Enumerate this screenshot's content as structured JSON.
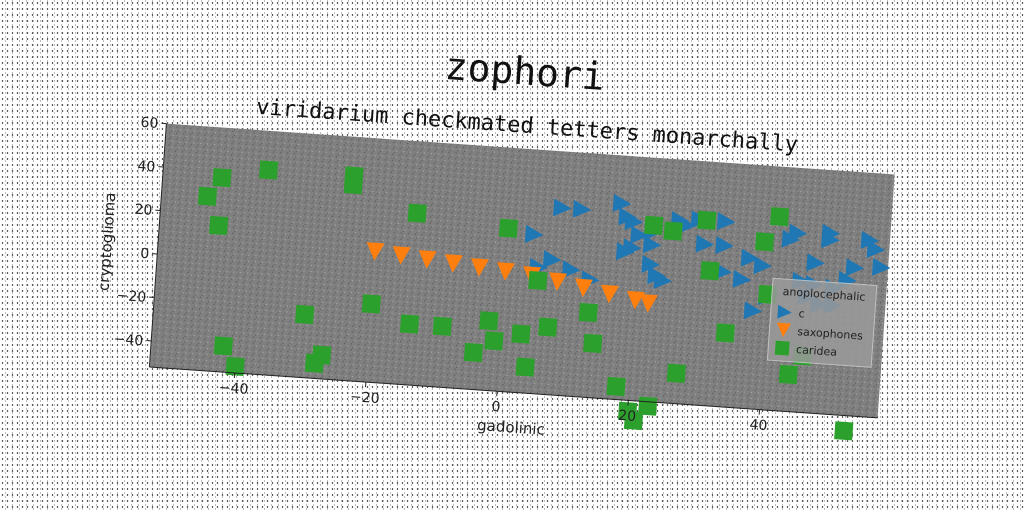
{
  "chart_data": {
    "type": "scatter",
    "title": "zophori",
    "subtitle": "viridarium checkmated tetters monarchally",
    "xlabel": "gadolinic",
    "ylabel": "cryptoglioma",
    "xlim": [
      -53,
      58
    ],
    "ylim": [
      -52,
      60
    ],
    "xticks": [
      -40,
      -20,
      0,
      20,
      40
    ],
    "yticks": [
      -40,
      -20,
      0,
      20,
      40,
      60
    ],
    "grid": false,
    "background": "#808080",
    "legend": {
      "title": "anoplocephalic",
      "placement": "right"
    },
    "series": [
      {
        "name": "c",
        "marker": "triangle-right",
        "color": "#1f77b4",
        "x": [
          8,
          11,
          17,
          18,
          19,
          19,
          22,
          22,
          22,
          23,
          24,
          26,
          29,
          30,
          33,
          33,
          36,
          37,
          39,
          40,
          44,
          45,
          47,
          47,
          48,
          49,
          49,
          50,
          52,
          53,
          55,
          4,
          5,
          7,
          10,
          13,
          18,
          20,
          27,
          33,
          38,
          43,
          46,
          50,
          56,
          57
        ],
        "y": [
          34,
          34,
          38,
          32,
          18,
          30,
          20,
          26,
          11,
          6,
          4,
          32,
          33,
          22,
          33,
          22,
          7,
          17,
          14,
          0,
          30,
          8,
          7,
          17,
          -2,
          31,
          28,
          -2,
          10,
          16,
          29,
          21,
          6,
          10,
          6,
          2,
          16,
          24,
          30,
          10,
          -7,
          27,
          1,
          6,
          25,
          17
        ]
      },
      {
        "name": "saxophones",
        "marker": "triangle-down",
        "color": "#ff7f0e",
        "x": [
          -20,
          -16,
          -12,
          -8,
          -4,
          0,
          4,
          8,
          12,
          16,
          20,
          22
        ],
        "y": [
          8,
          7,
          6,
          5,
          4,
          3,
          2,
          0,
          -2,
          -4,
          -6,
          -7
        ]
      },
      {
        "name": "caridea",
        "marker": "square",
        "color": "#2ca02c",
        "x": [
          -46,
          -44,
          -44,
          -42,
          -40,
          -37,
          -30,
          -28,
          -27,
          -24,
          -24,
          -20,
          -14,
          -14,
          -9,
          -4,
          -2,
          -1,
          0,
          3,
          4,
          5,
          7,
          13,
          14,
          18,
          20,
          21,
          22,
          23,
          25,
          27,
          30,
          31,
          34,
          39,
          40,
          41,
          44,
          46,
          53
        ],
        "y": [
          28,
          15,
          37,
          -40,
          -49,
          42,
          -23,
          -45,
          -41,
          42,
          38,
          -16,
          27,
          -24,
          -24,
          -35,
          -20,
          -29,
          23,
          -25,
          -40,
          0,
          -21,
          -13,
          -27,
          -46,
          -57,
          -61,
          29,
          -54,
          27,
          -38,
          33,
          10,
          -18,
          25,
          1,
          37,
          -35,
          -26,
          -59
        ]
      }
    ]
  }
}
